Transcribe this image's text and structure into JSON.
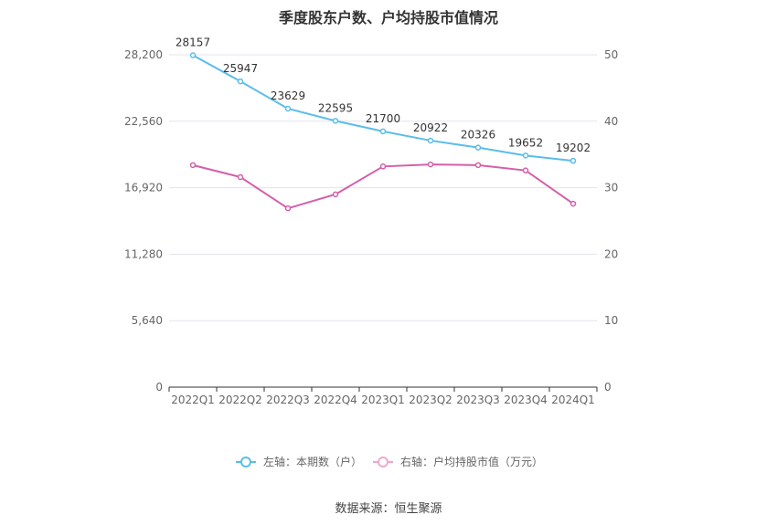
{
  "chart_data": {
    "type": "line",
    "title": "季度股东户数、户均持股市值情况",
    "categories": [
      "2022Q1",
      "2022Q2",
      "2022Q3",
      "2022Q4",
      "2023Q1",
      "2023Q2",
      "2023Q3",
      "2023Q4",
      "2024Q1"
    ],
    "left_axis": {
      "ticks": [
        "0",
        "5,640",
        "11,280",
        "16,920",
        "22,560",
        "28,200"
      ],
      "ylim": [
        0,
        28200
      ]
    },
    "right_axis": {
      "ticks": [
        "0",
        "10",
        "20",
        "30",
        "40",
        "50"
      ],
      "ylim": [
        0,
        50
      ]
    },
    "series": [
      {
        "name": "左轴：本期数（户）",
        "axis": "left",
        "color": "#5bbdea",
        "values": [
          28157,
          25947,
          23629,
          22595,
          21700,
          20922,
          20326,
          19652,
          19202
        ],
        "labels": [
          "28157",
          "25947",
          "23629",
          "22595",
          "21700",
          "20922",
          "20326",
          "19652",
          "19202"
        ]
      },
      {
        "name": "右轴：户均持股市值（万元）",
        "axis": "right",
        "color": "#d45fa8",
        "values": [
          33.4,
          31.6,
          26.9,
          29.0,
          33.2,
          33.5,
          33.4,
          32.6,
          27.6
        ]
      }
    ],
    "legend_position": "bottom",
    "grid": true
  },
  "footer": {
    "source": "数据来源：恒生聚源"
  }
}
